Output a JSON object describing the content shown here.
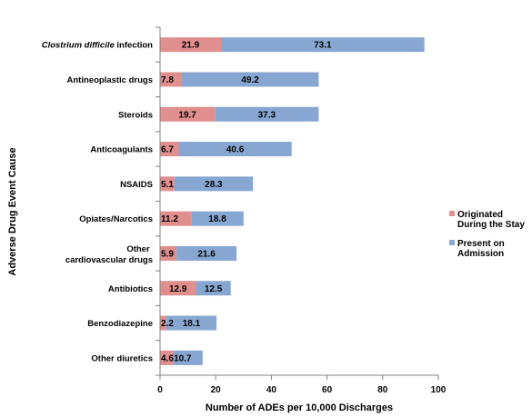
{
  "chart_data": {
    "type": "bar",
    "orientation": "horizontal",
    "stacked": true,
    "xlabel": "Number of ADEs per 10,000 Discharges",
    "ylabel": "Adverse Drug Event Cause",
    "xlim": [
      0,
      100
    ],
    "xticks": [
      0,
      20,
      40,
      60,
      80,
      100
    ],
    "grid": false,
    "legend_position": "right",
    "categories": [
      [
        "Clostrium difficile",
        " infection"
      ],
      [
        "Antineoplastic drugs"
      ],
      [
        "Steroids"
      ],
      [
        "Anticoagulants"
      ],
      [
        "NSAIDS"
      ],
      [
        "Opiates/Narcotics"
      ],
      [
        "Other",
        "cardiovascular drugs"
      ],
      [
        "Antibiotics"
      ],
      [
        "Benzodiazepine"
      ],
      [
        "Other diuretics"
      ]
    ],
    "series": [
      {
        "name": "Originated During the Stay",
        "legend_lines": [
          "Originated",
          "During the Stay"
        ],
        "color": "#e08e8e",
        "values": [
          21.9,
          7.8,
          19.7,
          6.7,
          5.1,
          11.2,
          5.9,
          12.9,
          2.2,
          4.6
        ],
        "labels": [
          "21.9",
          "7.8",
          "19.7",
          "6.7",
          "5.1",
          "11.2",
          "5.9",
          "12.9",
          "2.2",
          "4.6"
        ]
      },
      {
        "name": "Present on Admission",
        "legend_lines": [
          "Present on",
          "Admission"
        ],
        "color": "#87a7d2",
        "values": [
          73.1,
          49.2,
          37.3,
          40.6,
          28.3,
          18.8,
          21.6,
          12.5,
          18.1,
          10.7
        ],
        "labels": [
          "73.1",
          "49.2",
          "37.3",
          "40.6",
          "28.3",
          "18.8",
          "21.6",
          "12.5",
          "18.1",
          "10.7"
        ]
      }
    ]
  }
}
